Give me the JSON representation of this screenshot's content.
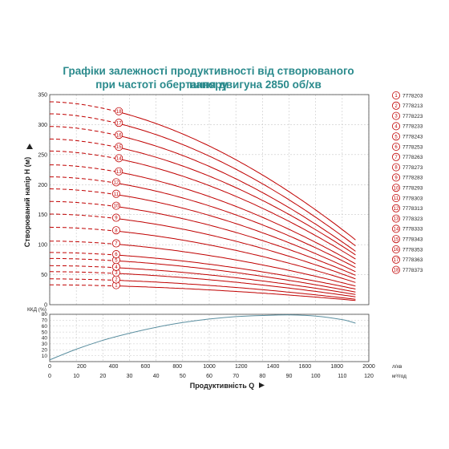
{
  "title": {
    "line1": "Графіки залежності продуктивності від створюваного напору",
    "line2": "при частоті обертання двигуна 2850 об/хв"
  },
  "colors": {
    "curve": "#c00000",
    "eff": "#5b8fa0",
    "title": "#2a8a8c"
  },
  "chart_data": [
    {
      "type": "line",
      "title": "Графіки залежності продуктивності від створюваного напору при частоті обертання двигуна 2850 об/хв",
      "xlabel": "",
      "ylabel": "Створюваний напір Н (м)",
      "xlim": [
        0,
        120
      ],
      "ylim": [
        0,
        350
      ],
      "y_ticks": [
        0,
        50,
        100,
        150,
        200,
        250,
        300,
        350
      ],
      "grid": true,
      "legend_position": "right",
      "dashed_until_x": 25,
      "curves": [
        {
          "label": "1",
          "legend": "7778203",
          "h0": 33,
          "h_end": 7
        },
        {
          "label": "2",
          "legend": "7778213",
          "h0": 43,
          "h_end": 9
        },
        {
          "label": "3",
          "legend": "7778223",
          "h0": 55,
          "h_end": 13
        },
        {
          "label": "4",
          "legend": "7778233",
          "h0": 65,
          "h_end": 17
        },
        {
          "label": "5",
          "legend": "7778243",
          "h0": 77,
          "h_end": 21
        },
        {
          "label": "6",
          "legend": "7778253",
          "h0": 87,
          "h_end": 26
        },
        {
          "label": "7",
          "legend": "7778263",
          "h0": 106,
          "h_end": 31
        },
        {
          "label": "8",
          "legend": "7778273",
          "h0": 129,
          "h_end": 37
        },
        {
          "label": "9",
          "legend": "7778283",
          "h0": 151,
          "h_end": 43
        },
        {
          "label": "10",
          "legend": "7778293",
          "h0": 172,
          "h_end": 49
        },
        {
          "label": "11",
          "legend": "7778303",
          "h0": 193,
          "h_end": 55
        },
        {
          "label": "12",
          "legend": "7778313",
          "h0": 213,
          "h_end": 62
        },
        {
          "label": "13",
          "legend": "7778323",
          "h0": 233,
          "h_end": 68
        },
        {
          "label": "14",
          "legend": "7778333",
          "h0": 256,
          "h_end": 76
        },
        {
          "label": "15",
          "legend": "7778343",
          "h0": 276,
          "h_end": 83
        },
        {
          "label": "16",
          "legend": "7778353",
          "h0": 297,
          "h_end": 89
        },
        {
          "label": "17",
          "legend": "7778363",
          "h0": 318,
          "h_end": 98
        },
        {
          "label": "18",
          "legend": "7778373",
          "h0": 338,
          "h_end": 108
        }
      ]
    },
    {
      "type": "line",
      "title": "",
      "ylabel": "ККД (%)",
      "xlabel": "Продуктивність Q",
      "ylim": [
        0,
        80
      ],
      "y_ticks": [
        0,
        10,
        20,
        30,
        40,
        50,
        60,
        70,
        80
      ],
      "x_top": {
        "unit": "л/хв",
        "ticks": [
          0,
          200,
          400,
          600,
          800,
          1000,
          1200,
          1400,
          1600,
          1800,
          2000
        ],
        "lim": [
          0,
          2000
        ]
      },
      "x_bottom": {
        "unit": "м³/год",
        "ticks": [
          0,
          10,
          20,
          30,
          40,
          50,
          60,
          70,
          80,
          90,
          100,
          110,
          120
        ],
        "lim": [
          0,
          120
        ]
      },
      "grid": true,
      "series": [
        {
          "x": [
            0,
            10,
            20,
            30,
            40,
            50,
            60,
            70,
            80,
            90,
            100,
            110,
            115
          ],
          "y": [
            3,
            21,
            36,
            48,
            58,
            66,
            72,
            76,
            78,
            79,
            77,
            71,
            65
          ]
        }
      ]
    }
  ]
}
